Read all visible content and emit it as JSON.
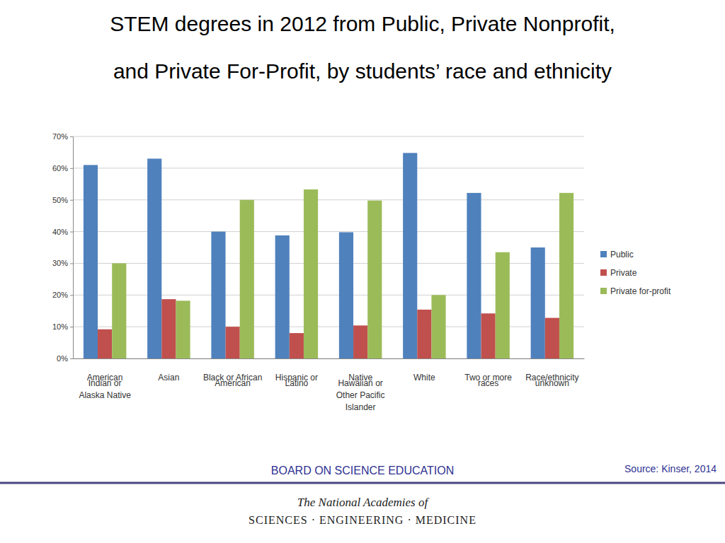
{
  "chart_data": {
    "type": "bar",
    "title": [
      "STEM degrees in 2012 from Public, Private Nonprofit,",
      "and Private For-Profit, by students’ race and ethnicity"
    ],
    "categories": [
      "American Indian or Alaska Native",
      "Asian",
      "Black or African American",
      "Hispanic or Latino",
      "Native Hawaiian or Other Pacific Islander",
      "White",
      "Two or more races",
      "Race/ethnicity unknown"
    ],
    "series": [
      {
        "name": "Public",
        "color": "#4f81bd",
        "values": [
          61,
          63,
          40,
          38.8,
          39.8,
          64.8,
          52.2,
          35
        ]
      },
      {
        "name": "Private",
        "color": "#c0504d",
        "values": [
          9.2,
          18.7,
          10,
          8,
          10.4,
          15.4,
          14.2,
          12.8
        ]
      },
      {
        "name": "Private for-profit",
        "color": "#9bbb59",
        "values": [
          30,
          18.2,
          50,
          53.3,
          49.8,
          20,
          33.5,
          52.2
        ]
      }
    ],
    "ylim": [
      0,
      70
    ],
    "yticks": [
      {
        "value": 0,
        "label": "0%"
      },
      {
        "value": 10,
        "label": "10%"
      },
      {
        "value": 20,
        "label": "20%"
      },
      {
        "value": 30,
        "label": "30%"
      },
      {
        "value": 40,
        "label": "40%"
      },
      {
        "value": 50,
        "label": "50%"
      },
      {
        "value": 60,
        "label": "60%"
      },
      {
        "value": 70,
        "label": "70%"
      }
    ],
    "grid": true,
    "legend": "right",
    "source": "Source: Kinser, 2014",
    "footer": [
      "BOARD ON SCIENCE EDUCATION",
      "The National Academies of",
      "SCIENCES · ENGINEERING · MEDICINE"
    ]
  }
}
